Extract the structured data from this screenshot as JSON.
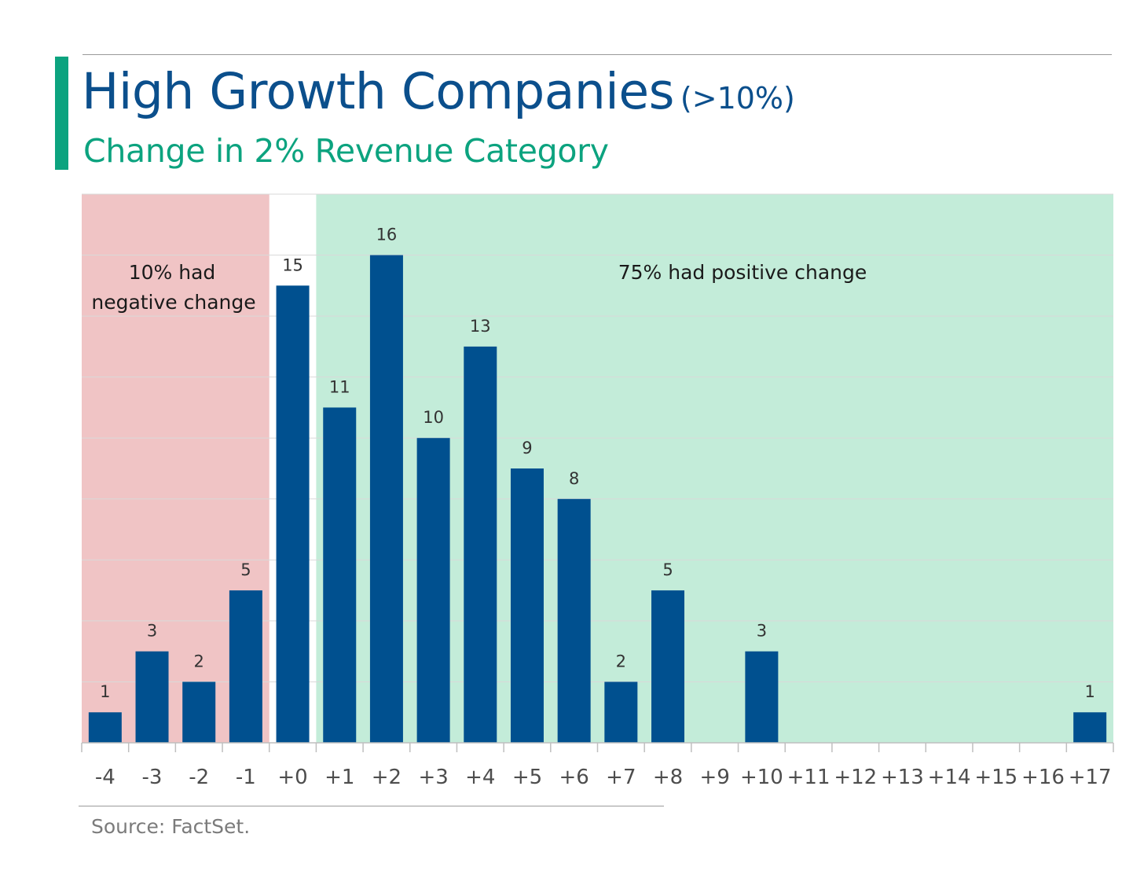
{
  "header": {
    "title": "High Growth Companies",
    "title_suffix": "(>10%)",
    "subtitle": "Change in 2% Revenue Category"
  },
  "colors": {
    "bar": "#00508f",
    "negative_region": "#f0c4c5",
    "positive_region": "#c3ecd9",
    "title": "#0b4f8c",
    "accent": "#0ca37f",
    "gridline": "#d9d9d9"
  },
  "chart_data": {
    "type": "bar",
    "title": "High Growth Companies (>10%)",
    "subtitle": "Change in 2% Revenue Category",
    "xlabel": "",
    "ylabel": "",
    "categories": [
      "-4",
      "-3",
      "-2",
      "-1",
      "+0",
      "+1",
      "+2",
      "+3",
      "+4",
      "+5",
      "+6",
      "+7",
      "+8",
      "+9",
      "+10",
      "+11",
      "+12",
      "+13",
      "+14",
      "+15",
      "+16",
      "+17"
    ],
    "values": [
      1,
      3,
      2,
      5,
      15,
      11,
      16,
      10,
      13,
      9,
      8,
      2,
      5,
      0,
      3,
      0,
      0,
      0,
      0,
      0,
      0,
      1
    ],
    "data_labels": [
      "1",
      "3",
      "2",
      "5",
      "15",
      "11",
      "16",
      "10",
      "13",
      "9",
      "8",
      "2",
      "5",
      "",
      "3",
      "",
      "",
      "",
      "",
      "",
      "",
      "1"
    ],
    "ylim": [
      0,
      18
    ],
    "grid": true,
    "y_axis_labels_shown": false,
    "shaded_regions": [
      {
        "from_category": "-4",
        "to_category": "-1",
        "color": "#f0c4c5",
        "label": "10% had negative change"
      },
      {
        "from_category": "+1",
        "to_category": "+17",
        "color": "#c3ecd9",
        "label": "75% had positive change"
      }
    ]
  },
  "annotations": {
    "negative_line1": "10% had",
    "negative_line2": "negative change",
    "positive": "75% had positive change"
  },
  "footer": {
    "source": "Source: FactSet."
  }
}
